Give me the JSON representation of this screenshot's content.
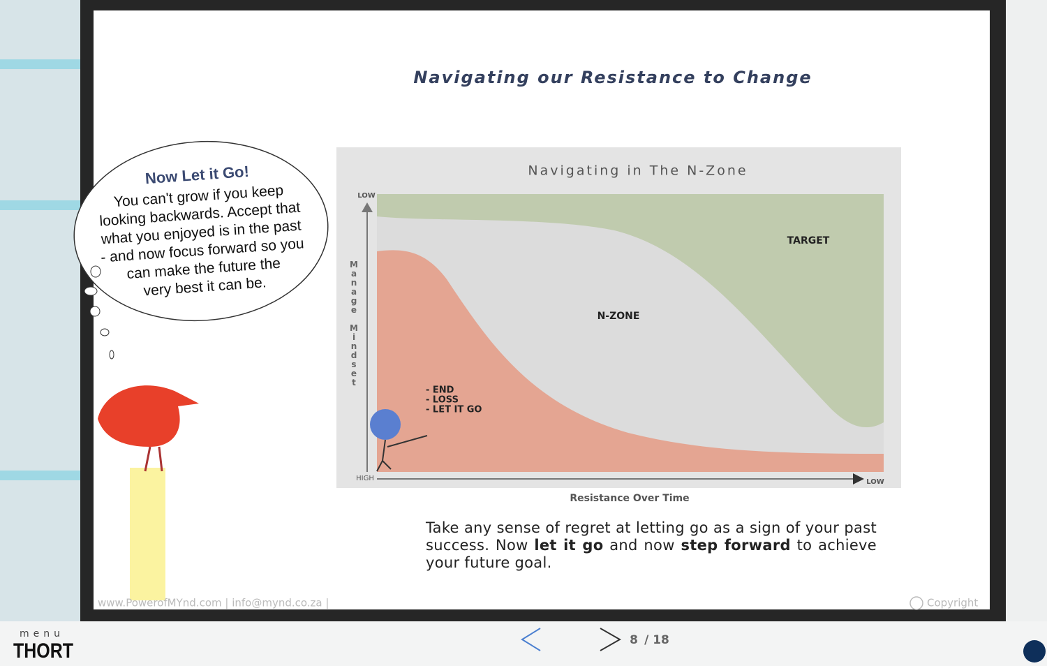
{
  "slide": {
    "title": "Navigating our Resistance to Change",
    "bubble": {
      "heading": "Now Let it Go!",
      "lines": [
        "You can't grow if you keep",
        "looking backwards. Accept that",
        "what you enjoyed is in the past",
        "- and now focus forward so you",
        "can make the future the",
        "very best it can be."
      ]
    },
    "diagram": {
      "title": "Navigating in The N-Zone",
      "y_axis": "Manage Mindset",
      "y_top": "LOW",
      "origin": "HIGH",
      "x_end": "LOW",
      "zones": [
        "TARGET",
        "N-ZONE"
      ],
      "notes": [
        "- END",
        "- LOSS",
        "- LET IT GO"
      ],
      "caption": "Resistance  Over Time"
    },
    "paragraph": [
      "Take any sense of regret at letting go as a sign of your past success. Now ",
      "let it go",
      " and now ",
      "step forward",
      " to achieve your future goal."
    ],
    "footer": {
      "links": "www.PowerofMYnd.com  |  info@mynd.co.za |",
      "copyright": "Copyright"
    }
  },
  "nav": {
    "page": "8",
    "total": "/ 18"
  },
  "menu": {
    "label": "menu",
    "brand": "THORT"
  }
}
